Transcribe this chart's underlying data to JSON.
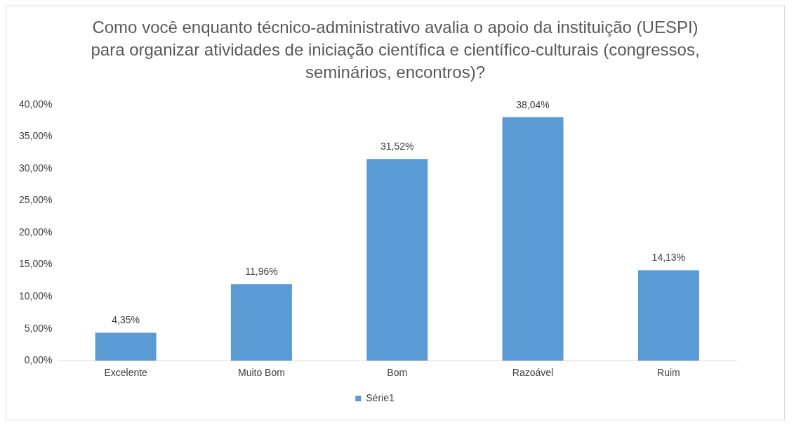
{
  "chart_data": {
    "type": "bar",
    "title": "Como você enquanto técnico-administrativo avalia o apoio da instituição (UESPI) para organizar atividades de iniciação científica e científico-culturais (congressos, seminários, encontros)?",
    "categories": [
      "Excelente",
      "Muito Bom",
      "Bom",
      "Razoável",
      "Ruim"
    ],
    "series": [
      {
        "name": "Série1",
        "color": "#5b9bd5",
        "values": [
          4.35,
          11.96,
          31.52,
          38.04,
          14.13
        ],
        "value_labels": [
          "4,35%",
          "11,96%",
          "31,52%",
          "38,04%",
          "14,13%"
        ]
      }
    ],
    "ylim": [
      0,
      40
    ],
    "yticks": [
      {
        "value": 0,
        "label": "0,00%"
      },
      {
        "value": 5,
        "label": "5,00%"
      },
      {
        "value": 10,
        "label": "10,00%"
      },
      {
        "value": 15,
        "label": "15,00%"
      },
      {
        "value": 20,
        "label": "20,00%"
      },
      {
        "value": 25,
        "label": "25,00%"
      },
      {
        "value": 30,
        "label": "30,00%"
      },
      {
        "value": 35,
        "label": "35,00%"
      },
      {
        "value": 40,
        "label": "40,00%"
      }
    ],
    "grid": false,
    "legend": "bottom"
  }
}
